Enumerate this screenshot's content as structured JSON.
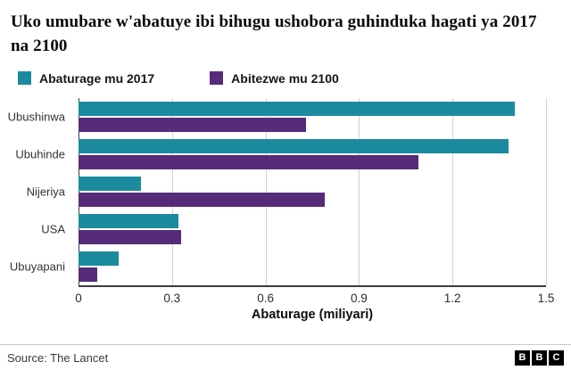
{
  "header": {
    "title": "Uko umubare w'abatuye ibi bihugu ushobora guhinduka hagati ya 2017 na 2100"
  },
  "colors": {
    "series_2017": "#1b8a9e",
    "series_2100": "#562c7a",
    "axis": "#3d3d3d",
    "gridline": "#d2d2d2"
  },
  "chart_data": {
    "type": "bar",
    "orientation": "horizontal",
    "title": "Uko umubare w'abatuye ibi bihugu ushobora guhinduka hagati ya 2017 na 2100",
    "categories": [
      "Ubushinwa",
      "Ubuhinde",
      "Nijeriya",
      "USA",
      "Ubuyapani"
    ],
    "series": [
      {
        "name": "Abaturage mu 2017",
        "color": "#1b8a9e",
        "values": [
          1.4,
          1.38,
          0.2,
          0.32,
          0.13
        ]
      },
      {
        "name": "Abitezwe mu 2100",
        "color": "#562c7a",
        "values": [
          0.73,
          1.09,
          0.79,
          0.33,
          0.06
        ]
      }
    ],
    "xlabel": "Abaturage (miliyari)",
    "ylabel": "",
    "xlim": [
      0,
      1.5
    ],
    "xticks": [
      "0",
      "0.3",
      "0.6",
      "0.9",
      "1.2",
      "1.5"
    ],
    "grid": true,
    "legend_position": "top"
  },
  "footer": {
    "source": "Source: The Lancet",
    "logo_letters": [
      "B",
      "B",
      "C"
    ]
  }
}
